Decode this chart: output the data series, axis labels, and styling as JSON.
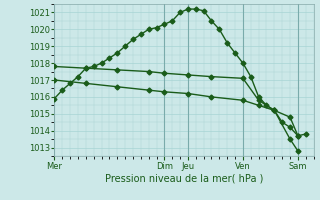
{
  "background_color": "#cce8e8",
  "grid_color": "#a8d4d4",
  "line_color": "#1a5c1a",
  "xlabel": "Pression niveau de la mer( hPa )",
  "ylim": [
    1012.5,
    1021.5
  ],
  "yticks": [
    1013,
    1014,
    1015,
    1016,
    1017,
    1018,
    1019,
    1020,
    1021
  ],
  "day_labels": [
    "Mer",
    "Dim",
    "Jeu",
    "Ven",
    "Sam"
  ],
  "day_positions": [
    0,
    14,
    17,
    24,
    31
  ],
  "xlim": [
    0,
    33
  ],
  "curve1_x": [
    0,
    1,
    2,
    3,
    4,
    5,
    6,
    7,
    8,
    9,
    10,
    11,
    12,
    13,
    14,
    15,
    16,
    17,
    18,
    19,
    20,
    21,
    22,
    23,
    24,
    25,
    26,
    27,
    28,
    29,
    30,
    31,
    32
  ],
  "curve1_y": [
    1015.9,
    1016.4,
    1016.8,
    1017.2,
    1017.7,
    1017.8,
    1018.0,
    1018.3,
    1018.6,
    1019.0,
    1019.4,
    1019.7,
    1020.0,
    1020.1,
    1020.3,
    1020.5,
    1021.0,
    1021.2,
    1021.2,
    1021.1,
    1020.5,
    1020.0,
    1019.2,
    1018.6,
    1018.0,
    1017.2,
    1016.0,
    1015.5,
    1015.2,
    1014.5,
    1014.2,
    1013.7,
    1013.8
  ],
  "curve2_x": [
    0,
    4,
    8,
    12,
    14,
    17,
    20,
    24,
    26,
    28,
    30,
    31
  ],
  "curve2_y": [
    1017.8,
    1017.7,
    1017.6,
    1017.5,
    1017.4,
    1017.3,
    1017.2,
    1017.1,
    1015.8,
    1015.2,
    1013.5,
    1012.8
  ],
  "curve3_x": [
    0,
    4,
    8,
    12,
    14,
    17,
    20,
    24,
    26,
    28,
    30,
    31
  ],
  "curve3_y": [
    1017.0,
    1016.8,
    1016.6,
    1016.4,
    1016.3,
    1016.2,
    1016.0,
    1015.8,
    1015.5,
    1015.2,
    1014.8,
    1013.7
  ],
  "marker_size": 2.5,
  "linewidth": 1.0,
  "tick_fontsize": 6,
  "label_fontsize": 7,
  "figsize": [
    3.2,
    2.0
  ],
  "dpi": 100
}
